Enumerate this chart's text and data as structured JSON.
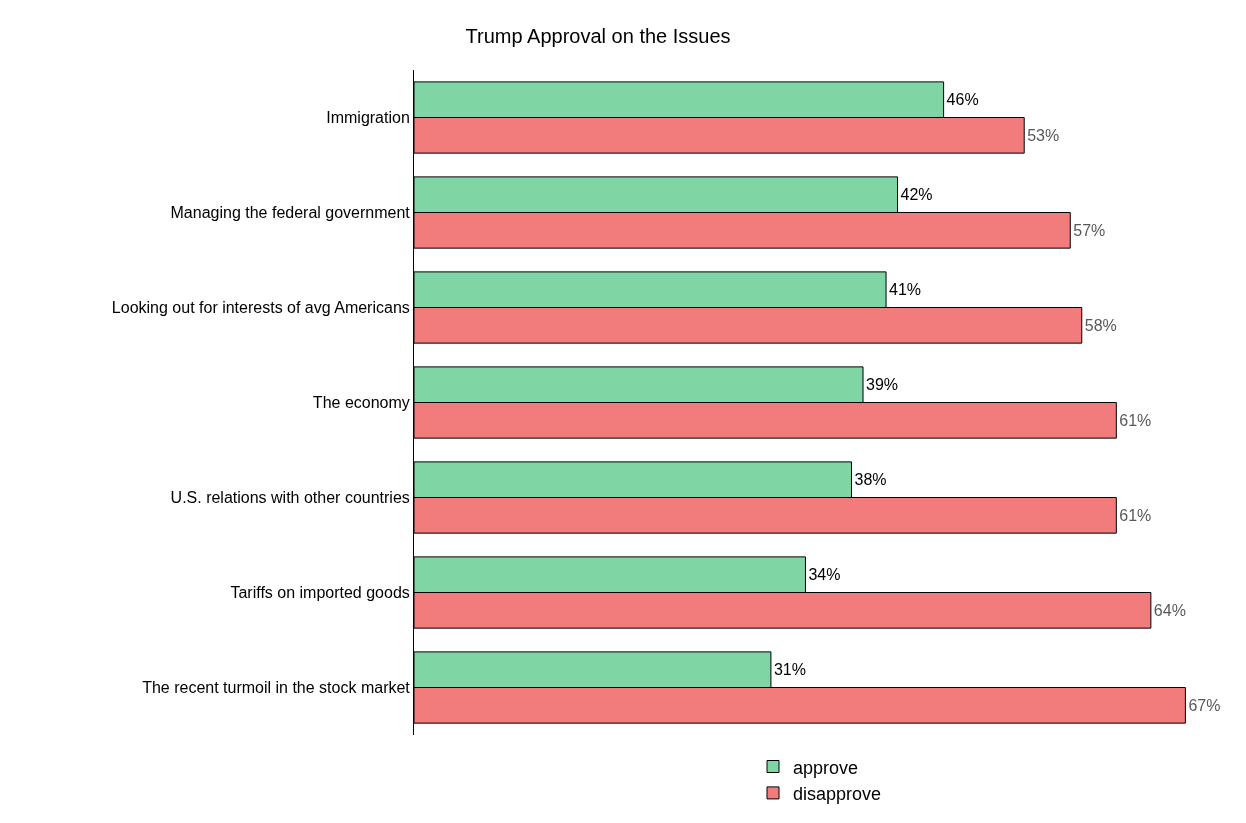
{
  "chart_data": {
    "type": "bar",
    "orientation": "horizontal",
    "title": "Trump Approval on the Issues",
    "categories": [
      "Immigration",
      "Managing the federal government",
      "Looking out for interests of avg Americans",
      "The economy",
      "U.S. relations with other countries",
      "Tariffs on imported goods",
      "The recent turmoil in the stock market"
    ],
    "series": [
      {
        "name": "approve",
        "color": "#7fd6a4",
        "values": [
          46,
          42,
          41,
          39,
          38,
          34,
          31
        ],
        "value_labels": [
          "46%",
          "42%",
          "41%",
          "39%",
          "38%",
          "34%",
          "31%"
        ]
      },
      {
        "name": "disapprove",
        "color": "#f27c7c",
        "values": [
          53,
          57,
          58,
          61,
          61,
          64,
          67
        ],
        "value_labels": [
          "53%",
          "57%",
          "58%",
          "61%",
          "61%",
          "64%",
          "67%"
        ]
      }
    ],
    "legend": "bottom",
    "grid": false
  }
}
